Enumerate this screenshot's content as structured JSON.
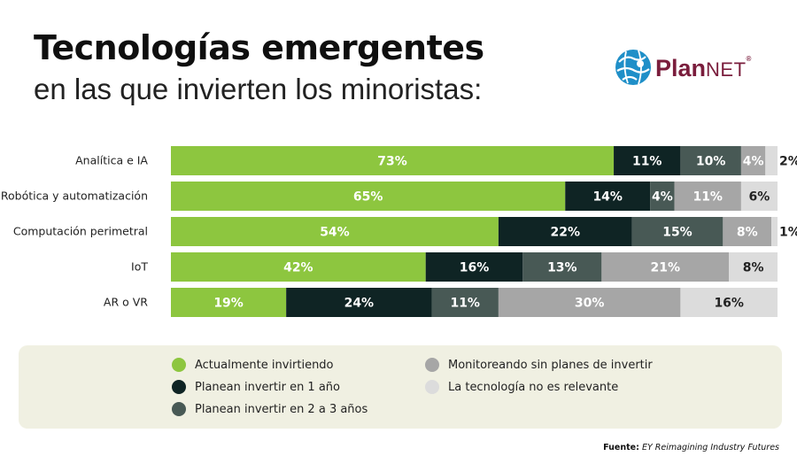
{
  "header": {
    "title": "Tecnologías emergentes",
    "subtitle": "en las que invierten los minoristas:"
  },
  "logo": {
    "brand_main": "Plan",
    "brand_suffix": "NET",
    "reg_mark": "®",
    "icon": "globe-icon",
    "color": "#7a1d3c",
    "globe_color": "#1f8fc8"
  },
  "chart_data": {
    "type": "bar",
    "orientation": "horizontal",
    "stacked": true,
    "categories": [
      "Analítica e IA",
      "Robótica y automatización",
      "Computación perimetral",
      "IoT",
      "AR o VR"
    ],
    "series": [
      {
        "name": "Actualmente invirtiendo",
        "color": "#8dc63f",
        "label_color": "#ffffff",
        "values": [
          73,
          65,
          54,
          42,
          19
        ]
      },
      {
        "name": "Planean invertir en 1 año",
        "color": "#0f2424",
        "label_color": "#ffffff",
        "values": [
          11,
          14,
          22,
          16,
          24
        ]
      },
      {
        "name": "Planean invertir en 2 a 3 años",
        "color": "#485955",
        "label_color": "#ffffff",
        "values": [
          10,
          4,
          15,
          13,
          11
        ]
      },
      {
        "name": "Monitoreando sin planes de invertir",
        "color": "#a6a6a6",
        "label_color": "#ffffff",
        "values": [
          4,
          11,
          8,
          21,
          30
        ]
      },
      {
        "name": "La tecnología no es relevante",
        "color": "#dcdcdc",
        "label_color": "#222222",
        "values": [
          2,
          6,
          1,
          8,
          16
        ]
      }
    ],
    "value_suffix": "%",
    "xlim": [
      0,
      100
    ],
    "legend_position": "bottom",
    "grid": false
  },
  "source": {
    "label": "Fuente:",
    "text": "EY Reimagining Industry Futures"
  }
}
